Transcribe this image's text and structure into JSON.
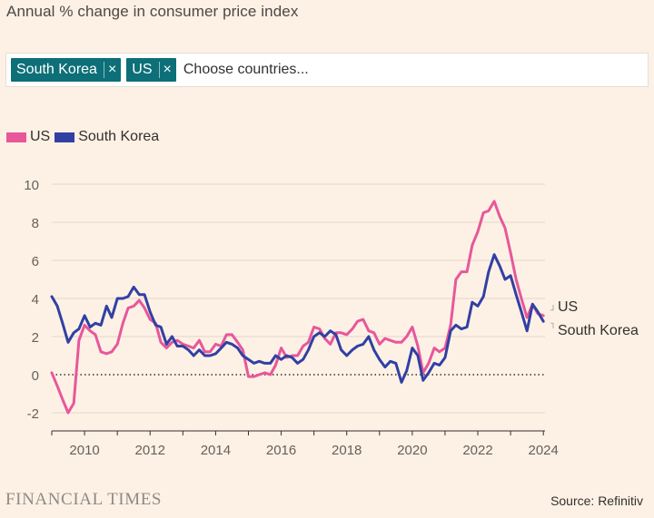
{
  "header": {
    "title": "Annual % change in consumer price index"
  },
  "selector": {
    "chips": [
      {
        "label": "South Korea",
        "remove_glyph": "×"
      },
      {
        "label": "US",
        "remove_glyph": "×"
      }
    ],
    "placeholder": "Choose countries..."
  },
  "footer": {
    "brand": "FINANCIAL TIMES",
    "source": "Source: Refinitiv"
  },
  "colors": {
    "US": "#e8579a",
    "South Korea": "#3140a3",
    "background": "#fdf1e5",
    "chip": "#0d6f78"
  },
  "chart_data": {
    "type": "line",
    "title": "Annual % change in consumer price index",
    "xlabel": "",
    "ylabel": "",
    "xlim": [
      2009.0,
      2024.05
    ],
    "ylim": [
      -2.6,
      10.4
    ],
    "x_ticks": [
      2010,
      2012,
      2014,
      2016,
      2018,
      2020,
      2022,
      2024
    ],
    "y_ticks": [
      10,
      8,
      6,
      4,
      2,
      0,
      -2
    ],
    "grid": "horizontal",
    "zero_line": "dotted",
    "legend": "top-left",
    "end_labels": [
      "US",
      "South Korea"
    ],
    "series": [
      {
        "name": "US",
        "color": "#e8579a",
        "x": [
          2009.0,
          2009.17,
          2009.33,
          2009.5,
          2009.67,
          2009.83,
          2010.0,
          2010.17,
          2010.33,
          2010.5,
          2010.67,
          2010.83,
          2011.0,
          2011.17,
          2011.33,
          2011.5,
          2011.67,
          2011.83,
          2012.0,
          2012.17,
          2012.33,
          2012.5,
          2012.67,
          2012.83,
          2013.0,
          2013.17,
          2013.33,
          2013.5,
          2013.67,
          2013.83,
          2014.0,
          2014.17,
          2014.33,
          2014.5,
          2014.67,
          2014.83,
          2015.0,
          2015.17,
          2015.33,
          2015.5,
          2015.67,
          2015.83,
          2016.0,
          2016.17,
          2016.33,
          2016.5,
          2016.67,
          2016.83,
          2017.0,
          2017.17,
          2017.33,
          2017.5,
          2017.67,
          2017.83,
          2018.0,
          2018.17,
          2018.33,
          2018.5,
          2018.67,
          2018.83,
          2019.0,
          2019.17,
          2019.33,
          2019.5,
          2019.67,
          2019.83,
          2020.0,
          2020.17,
          2020.33,
          2020.5,
          2020.67,
          2020.83,
          2021.0,
          2021.17,
          2021.33,
          2021.5,
          2021.67,
          2021.83,
          2022.0,
          2022.17,
          2022.33,
          2022.5,
          2022.67,
          2022.83,
          2023.0,
          2023.17,
          2023.33,
          2023.5,
          2023.67,
          2023.83,
          2024.0
        ],
        "values": [
          0.1,
          -0.6,
          -1.3,
          -2.0,
          -1.5,
          1.8,
          2.6,
          2.3,
          2.1,
          1.2,
          1.1,
          1.2,
          1.6,
          2.7,
          3.5,
          3.6,
          3.9,
          3.5,
          2.9,
          2.7,
          1.7,
          1.4,
          1.7,
          1.8,
          1.6,
          1.5,
          1.4,
          1.8,
          1.2,
          1.2,
          1.6,
          1.5,
          2.1,
          2.1,
          1.7,
          1.3,
          -0.1,
          -0.1,
          0.0,
          0.1,
          0.0,
          0.5,
          1.4,
          0.9,
          1.0,
          1.0,
          1.5,
          1.7,
          2.5,
          2.4,
          1.9,
          1.6,
          2.2,
          2.2,
          2.1,
          2.4,
          2.8,
          2.9,
          2.3,
          2.2,
          1.6,
          1.9,
          1.8,
          1.7,
          1.7,
          2.0,
          2.5,
          1.5,
          0.1,
          0.6,
          1.4,
          1.2,
          1.4,
          2.6,
          5.0,
          5.4,
          5.4,
          6.8,
          7.5,
          8.5,
          8.6,
          9.1,
          8.3,
          7.7,
          6.4,
          5.0,
          4.0,
          3.0,
          3.7,
          3.2,
          3.1
        ]
      },
      {
        "name": "South Korea",
        "color": "#3140a3",
        "x": [
          2009.0,
          2009.17,
          2009.33,
          2009.5,
          2009.67,
          2009.83,
          2010.0,
          2010.17,
          2010.33,
          2010.5,
          2010.67,
          2010.83,
          2011.0,
          2011.17,
          2011.33,
          2011.5,
          2011.67,
          2011.83,
          2012.0,
          2012.17,
          2012.33,
          2012.5,
          2012.67,
          2012.83,
          2013.0,
          2013.17,
          2013.33,
          2013.5,
          2013.67,
          2013.83,
          2014.0,
          2014.17,
          2014.33,
          2014.5,
          2014.67,
          2014.83,
          2015.0,
          2015.17,
          2015.33,
          2015.5,
          2015.67,
          2015.83,
          2016.0,
          2016.17,
          2016.33,
          2016.5,
          2016.67,
          2016.83,
          2017.0,
          2017.17,
          2017.33,
          2017.5,
          2017.67,
          2017.83,
          2018.0,
          2018.17,
          2018.33,
          2018.5,
          2018.67,
          2018.83,
          2019.0,
          2019.17,
          2019.33,
          2019.5,
          2019.67,
          2019.83,
          2020.0,
          2020.17,
          2020.33,
          2020.5,
          2020.67,
          2020.83,
          2021.0,
          2021.17,
          2021.33,
          2021.5,
          2021.67,
          2021.83,
          2022.0,
          2022.17,
          2022.33,
          2022.5,
          2022.67,
          2022.83,
          2023.0,
          2023.17,
          2023.33,
          2023.5,
          2023.67,
          2023.83,
          2024.0
        ],
        "values": [
          4.1,
          3.6,
          2.7,
          1.7,
          2.2,
          2.4,
          3.1,
          2.5,
          2.7,
          2.6,
          3.6,
          3.0,
          4.0,
          4.0,
          4.1,
          4.6,
          4.2,
          4.2,
          3.3,
          2.6,
          2.5,
          1.6,
          2.0,
          1.5,
          1.5,
          1.3,
          1.0,
          1.3,
          1.0,
          1.0,
          1.1,
          1.4,
          1.7,
          1.6,
          1.4,
          1.0,
          0.8,
          0.6,
          0.7,
          0.6,
          0.6,
          1.0,
          0.8,
          1.0,
          0.9,
          0.6,
          0.8,
          1.3,
          2.0,
          2.2,
          2.0,
          2.3,
          2.1,
          1.3,
          1.0,
          1.3,
          1.5,
          1.6,
          2.0,
          1.3,
          0.8,
          0.4,
          0.7,
          0.6,
          -0.4,
          0.2,
          1.4,
          1.0,
          -0.3,
          0.1,
          0.6,
          0.5,
          0.9,
          2.3,
          2.6,
          2.4,
          2.5,
          3.8,
          3.6,
          4.1,
          5.4,
          6.3,
          5.7,
          5.0,
          5.2,
          4.2,
          3.3,
          2.3,
          3.7,
          3.3,
          2.8
        ]
      }
    ]
  }
}
